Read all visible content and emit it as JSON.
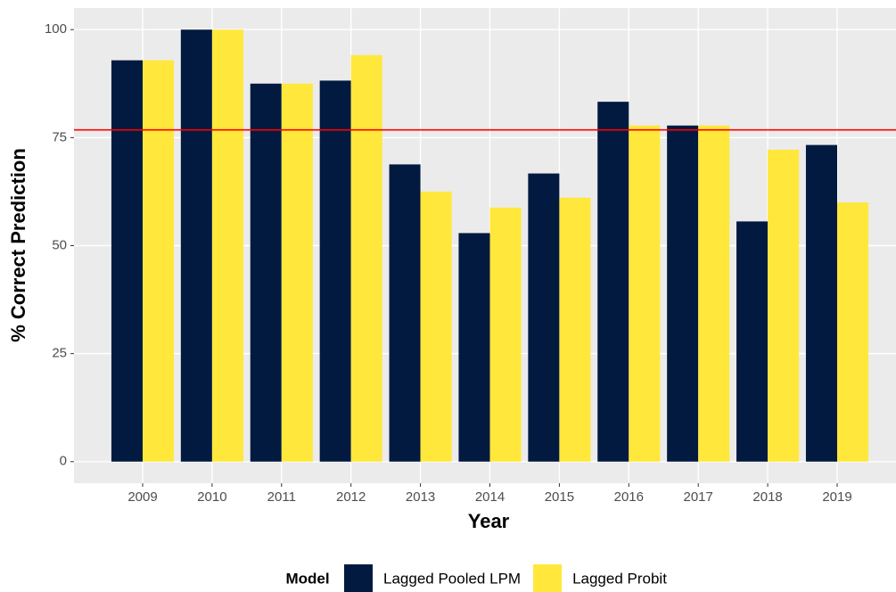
{
  "chart_data": {
    "type": "bar",
    "x_label": "Year",
    "y_label": "% Correct Prediction",
    "categories": [
      "2009",
      "2010",
      "2011",
      "2012",
      "2013",
      "2014",
      "2015",
      "2016",
      "2017",
      "2018",
      "2019"
    ],
    "series": [
      {
        "name": "Lagged Pooled LPM",
        "color": "#021a40",
        "values": [
          92.9,
          100,
          87.5,
          88.2,
          68.8,
          52.9,
          66.7,
          83.3,
          77.8,
          55.6,
          73.3
        ]
      },
      {
        "name": "Lagged Probit",
        "color": "#ffe83b",
        "values": [
          92.9,
          100,
          87.5,
          94.1,
          62.5,
          58.8,
          61.1,
          77.8,
          77.8,
          72.2,
          60.0
        ]
      }
    ],
    "legend_title": "Model",
    "legend_position": "bottom",
    "ylim": [
      -5,
      105
    ],
    "yticks": [
      0,
      25,
      50,
      75,
      100
    ],
    "grid": true,
    "hline": {
      "value": 76.8,
      "color": "#ff0000"
    }
  }
}
